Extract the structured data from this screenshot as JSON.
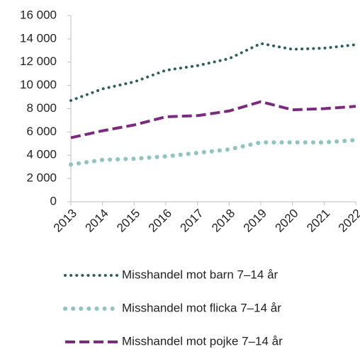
{
  "chart_data": {
    "type": "line",
    "categories": [
      "2013",
      "2014",
      "2015",
      "2016",
      "2017",
      "2018",
      "2019",
      "2020",
      "2021",
      "2022"
    ],
    "series": [
      {
        "name": "Misshandel mot barn 7–14 år",
        "color": "#2f5f5a",
        "values": [
          8700,
          9700,
          10300,
          11300,
          11700,
          12300,
          13600,
          13100,
          13200,
          13500
        ]
      },
      {
        "name": "Misshandel mot flicka 7–14 år",
        "color": "#8fc5bf",
        "values": [
          3200,
          3600,
          3700,
          3900,
          4200,
          4500,
          5100,
          5100,
          5100,
          5300
        ]
      },
      {
        "name": "Misshandel mot pojke 7–14 år",
        "color": "#7b2a7f",
        "values": [
          5500,
          6100,
          6600,
          7300,
          7400,
          7800,
          8600,
          7900,
          8000,
          8200
        ]
      }
    ],
    "ylim": [
      0,
      16000
    ],
    "yticks": [
      0,
      {
        "value": 2000,
        "label": "2 000"
      },
      {
        "value": 4000,
        "label": "4 000"
      },
      {
        "value": 6000,
        "label": "6 000"
      },
      {
        "value": 8000,
        "label": "8 000"
      },
      {
        "value": 10000,
        "label": "10 000"
      },
      {
        "value": 12000,
        "label": "12 000"
      },
      {
        "value": 14000,
        "label": "14 000"
      },
      {
        "value": 16000,
        "label": "16 000"
      }
    ],
    "legend": "bottom"
  }
}
